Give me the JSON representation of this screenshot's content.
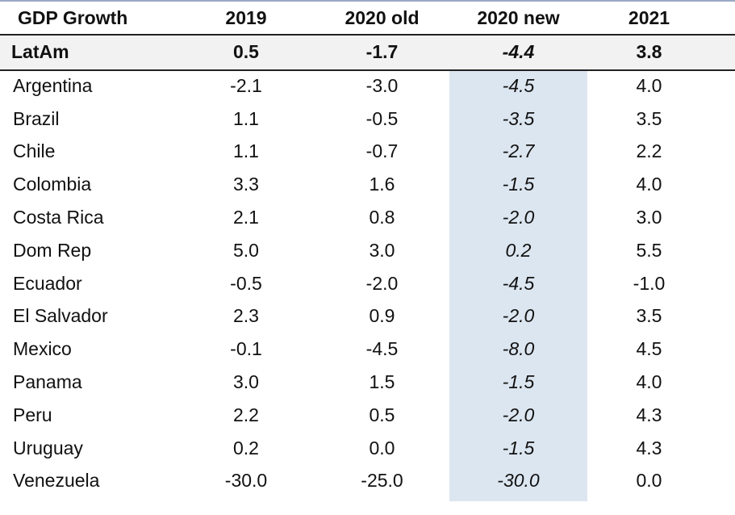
{
  "chart_data": {
    "type": "table",
    "columns": [
      "GDP Growth",
      "2019",
      "2020 old",
      "2020 new",
      "2021"
    ],
    "summary_row": {
      "label": "LatAm",
      "values": [
        "0.5",
        "-1.7",
        "-4.4",
        "3.8"
      ]
    },
    "rows": [
      {
        "label": "Argentina",
        "values": [
          "-2.1",
          "-3.0",
          "-4.5",
          "4.0"
        ]
      },
      {
        "label": "Brazil",
        "values": [
          "1.1",
          "-0.5",
          "-3.5",
          "3.5"
        ]
      },
      {
        "label": "Chile",
        "values": [
          "1.1",
          "-0.7",
          "-2.7",
          "2.2"
        ]
      },
      {
        "label": "Colombia",
        "values": [
          "3.3",
          "1.6",
          "-1.5",
          "4.0"
        ]
      },
      {
        "label": "Costa Rica",
        "values": [
          "2.1",
          "0.8",
          "-2.0",
          "3.0"
        ]
      },
      {
        "label": "Dom Rep",
        "values": [
          "5.0",
          "3.0",
          "0.2",
          "5.5"
        ]
      },
      {
        "label": "Ecuador",
        "values": [
          "-0.5",
          "-2.0",
          "-4.5",
          "-1.0"
        ]
      },
      {
        "label": "El Salvador",
        "values": [
          "2.3",
          "0.9",
          "-2.0",
          "3.5"
        ]
      },
      {
        "label": "Mexico",
        "values": [
          "-0.1",
          "-4.5",
          "-8.0",
          "4.5"
        ]
      },
      {
        "label": "Panama",
        "values": [
          "3.0",
          "1.5",
          "-1.5",
          "4.0"
        ]
      },
      {
        "label": "Peru",
        "values": [
          "2.2",
          "0.5",
          "-2.0",
          "4.3"
        ]
      },
      {
        "label": "Uruguay",
        "values": [
          "0.2",
          "0.0",
          "-1.5",
          "4.3"
        ]
      },
      {
        "label": "Venezuela",
        "values": [
          "-30.0",
          "-25.0",
          "-30.0",
          "0.0"
        ]
      }
    ],
    "highlight_column": "2020 new",
    "highlight_color": "#dce6f0"
  }
}
